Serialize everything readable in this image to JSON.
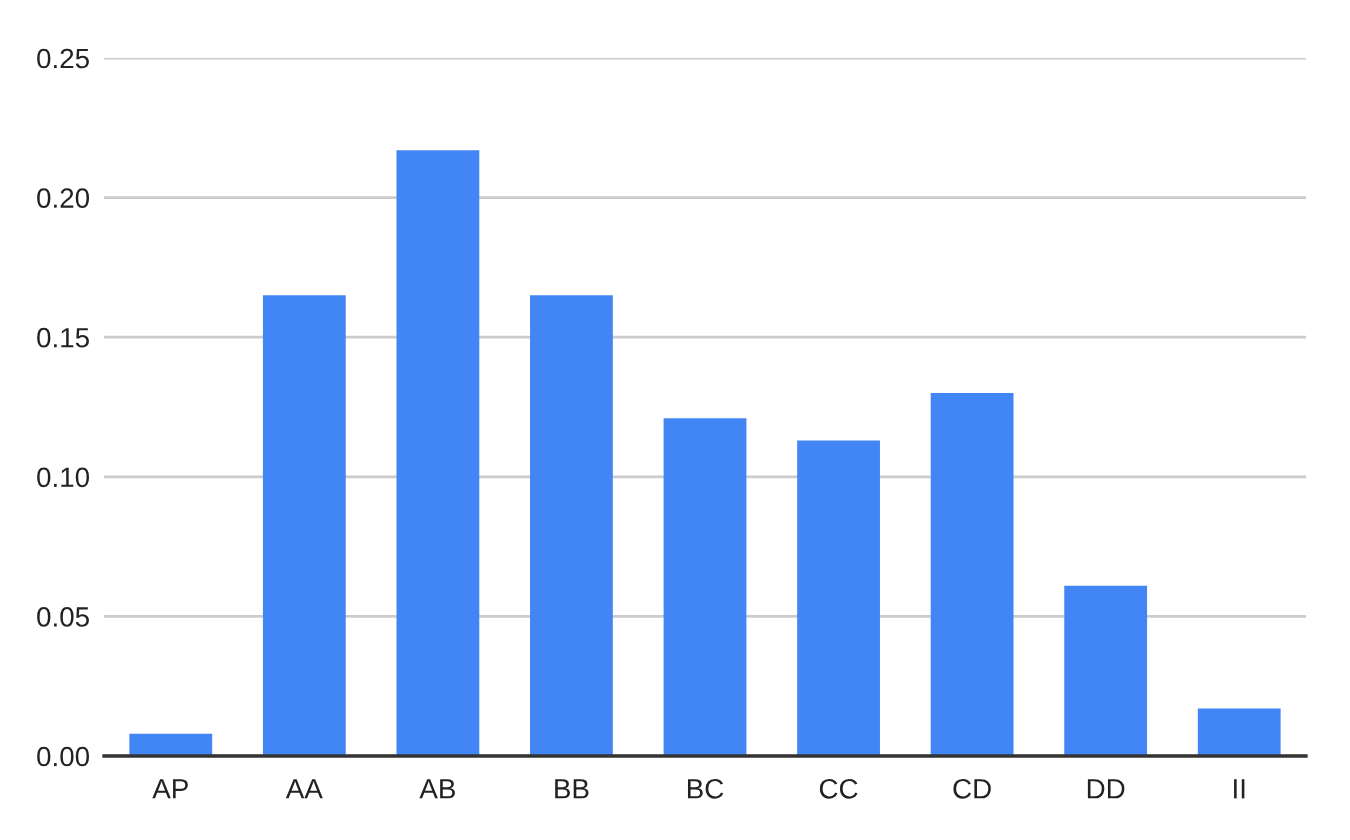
{
  "chart_data": {
    "type": "bar",
    "categories": [
      "AP",
      "AA",
      "AB",
      "BB",
      "BC",
      "CC",
      "CD",
      "DD",
      "II"
    ],
    "values": [
      0.008,
      0.165,
      0.217,
      0.165,
      0.121,
      0.113,
      0.13,
      0.061,
      0.017
    ],
    "color": "#4285f4",
    "ylim": [
      0,
      0.25
    ],
    "yticks": [
      {
        "value": 0,
        "label": "0.00"
      },
      0.05,
      {
        "value": 0.1,
        "label": "0.10"
      },
      0.15,
      {
        "value": 0.2,
        "label": "0.20"
      },
      0.25
    ],
    "grid": "y"
  }
}
